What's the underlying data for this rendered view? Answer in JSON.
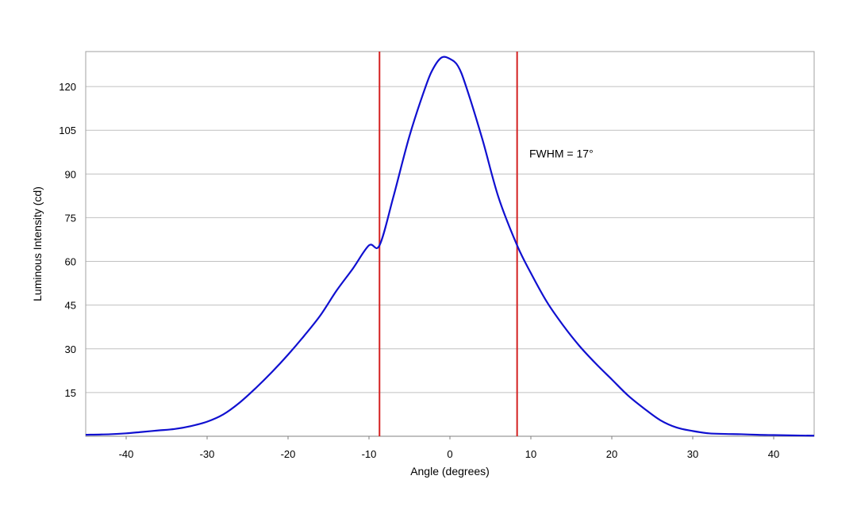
{
  "chart_data": {
    "type": "line",
    "title": "",
    "xlabel": "Angle (degrees)",
    "ylabel": "Luminous Intensity (cd)",
    "xlim": [
      -45,
      45
    ],
    "ylim": [
      0,
      132
    ],
    "xticks": [
      -40,
      -30,
      -20,
      -10,
      0,
      10,
      20,
      30,
      40
    ],
    "xtick_labels": [
      "-40",
      "-30",
      "-20",
      "-10",
      "0",
      "10",
      "20",
      "30",
      "40"
    ],
    "yticks": [
      15,
      30,
      45,
      60,
      75,
      90,
      105,
      120
    ],
    "ytick_labels": [
      "15",
      "30",
      "45",
      "60",
      "75",
      "90",
      "105",
      "120"
    ],
    "grid": {
      "horizontal": true,
      "vertical": false
    },
    "legend": "none",
    "colors": {
      "series": "#1010d0",
      "markers": "#d42020",
      "grid": "#c0c0c0",
      "frame": "#a0a0a0"
    },
    "series": [
      {
        "x": [
          -45,
          -42,
          -40,
          -38,
          -36,
          -34,
          -32,
          -30,
          -28,
          -26,
          -24,
          -22,
          -20,
          -18,
          -16,
          -14,
          -12,
          -10,
          -8.7,
          -7,
          -5,
          -3,
          -2,
          -1,
          0,
          1,
          2,
          4,
          6,
          8.3,
          10,
          12,
          14,
          16,
          18,
          20,
          22,
          24,
          26,
          28,
          30,
          32,
          34,
          36,
          38,
          40,
          42,
          45
        ],
        "y": [
          0.5,
          0.7,
          1.0,
          1.5,
          2.0,
          2.5,
          3.5,
          5.0,
          7.5,
          11.5,
          16.5,
          22.0,
          28.0,
          34.5,
          41.5,
          50.0,
          57.5,
          65.5,
          65.5,
          82.0,
          103.0,
          120.0,
          126.5,
          130.0,
          129.5,
          127.0,
          120.0,
          102.0,
          82.0,
          65.5,
          56.0,
          46.0,
          38.0,
          31.0,
          25.0,
          19.5,
          14.0,
          9.5,
          5.5,
          3.0,
          1.8,
          1.0,
          0.8,
          0.7,
          0.5,
          0.4,
          0.3,
          0.2
        ]
      }
    ],
    "markers": [
      {
        "x": -8.7
      },
      {
        "x": 8.3
      }
    ],
    "annotations": [
      {
        "text": "FWHM = 17°",
        "x": 10,
        "y": 97
      }
    ]
  }
}
